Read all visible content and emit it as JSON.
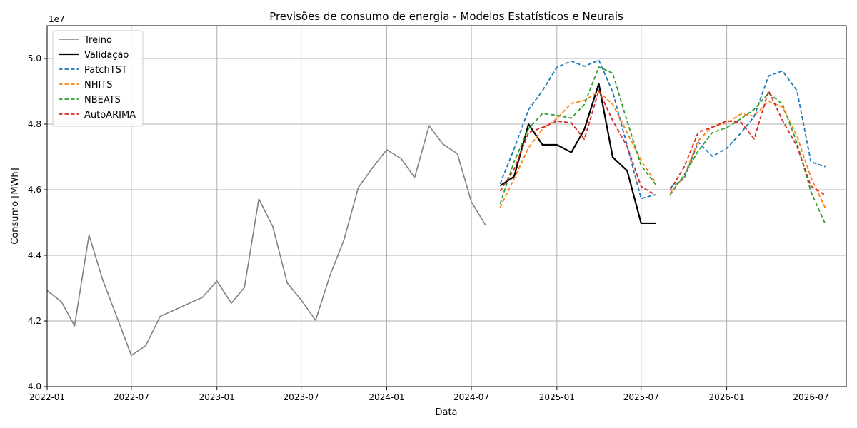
{
  "chart_data": {
    "type": "line",
    "title": "Previsões de consumo de energia - Modelos Estatísticos e Neurais",
    "xlabel": "Data",
    "ylabel": "Consumo [MWh]",
    "y_offset_label": "1e7",
    "ylim": [
      40000000,
      51000000
    ],
    "y_scale": 10000000,
    "xlim": [
      "2022-01-01",
      "2026-09-15"
    ],
    "x_ticks": [
      "2022-01",
      "2022-07",
      "2023-01",
      "2023-07",
      "2024-01",
      "2024-07",
      "2025-01",
      "2025-07",
      "2026-01",
      "2026-07"
    ],
    "y_ticks": [
      "4.0",
      "4.2",
      "4.4",
      "4.6",
      "4.8",
      "5.0"
    ],
    "grid": true,
    "legend_position": "top-left",
    "series": [
      {
        "name": "Treino",
        "color": "#808080",
        "style": "solid",
        "width": 1.6,
        "points": [
          [
            "2022-01-01",
            42930000
          ],
          [
            "2022-02-01",
            42580000
          ],
          [
            "2022-03-01",
            41850000
          ],
          [
            "2022-04-01",
            44620000
          ],
          [
            "2022-05-01",
            43230000
          ],
          [
            "2022-06-01",
            42080000
          ],
          [
            "2022-07-01",
            40950000
          ],
          [
            "2022-08-01",
            41250000
          ],
          [
            "2022-09-01",
            42140000
          ],
          [
            "2022-12-01",
            42720000
          ],
          [
            "2023-01-01",
            43220000
          ],
          [
            "2023-02-01",
            42540000
          ],
          [
            "2023-03-01",
            43020000
          ],
          [
            "2023-04-01",
            45720000
          ],
          [
            "2023-05-01",
            44880000
          ],
          [
            "2023-06-01",
            43160000
          ],
          [
            "2023-07-01",
            42640000
          ],
          [
            "2023-08-01",
            42020000
          ],
          [
            "2023-09-01",
            43390000
          ],
          [
            "2023-10-01",
            44470000
          ],
          [
            "2023-11-01",
            46070000
          ],
          [
            "2023-12-01",
            46660000
          ],
          [
            "2024-01-01",
            47220000
          ],
          [
            "2024-02-01",
            46950000
          ],
          [
            "2024-03-01",
            46370000
          ],
          [
            "2024-04-01",
            47950000
          ],
          [
            "2024-05-01",
            47390000
          ],
          [
            "2024-06-01",
            47100000
          ],
          [
            "2024-07-01",
            45630000
          ],
          [
            "2024-08-01",
            44910000
          ]
        ]
      },
      {
        "name": "Validação",
        "color": "#000000",
        "style": "solid",
        "width": 2.2,
        "points": [
          [
            "2024-09-01",
            46120000
          ],
          [
            "2024-10-01",
            46400000
          ],
          [
            "2024-11-01",
            48000000
          ],
          [
            "2024-12-01",
            47370000
          ],
          [
            "2025-01-01",
            47370000
          ],
          [
            "2025-02-01",
            47140000
          ],
          [
            "2025-03-01",
            47840000
          ],
          [
            "2025-04-01",
            49230000
          ],
          [
            "2025-05-01",
            46990000
          ],
          [
            "2025-06-01",
            46580000
          ],
          [
            "2025-07-01",
            44980000
          ],
          [
            "2025-08-01",
            44980000
          ]
        ]
      },
      {
        "name": "PatchTST",
        "color": "#1f77b4",
        "style": "dashed",
        "width": 1.8,
        "points": [
          [
            "2024-09-01",
            46180000
          ],
          [
            "2024-10-01",
            47250000
          ],
          [
            "2024-11-01",
            48440000
          ],
          [
            "2024-12-01",
            49020000
          ],
          [
            "2025-01-01",
            49730000
          ],
          [
            "2025-02-01",
            49920000
          ],
          [
            "2025-03-01",
            49760000
          ],
          [
            "2025-04-01",
            49950000
          ],
          [
            "2025-05-01",
            48980000
          ],
          [
            "2025-06-01",
            47340000
          ],
          [
            "2025-07-01",
            45730000
          ],
          [
            "2025-08-01",
            45850000
          ]
        ],
        "points_2": [
          [
            "2025-09-01",
            46060000
          ],
          [
            "2025-10-01",
            46330000
          ],
          [
            "2025-11-01",
            47450000
          ],
          [
            "2025-12-01",
            47020000
          ],
          [
            "2026-01-01",
            47260000
          ],
          [
            "2026-02-01",
            47740000
          ],
          [
            "2026-03-01",
            48230000
          ],
          [
            "2026-04-01",
            49470000
          ],
          [
            "2026-05-01",
            49620000
          ],
          [
            "2026-06-01",
            49020000
          ],
          [
            "2026-07-01",
            46850000
          ],
          [
            "2026-08-01",
            46700000
          ]
        ]
      },
      {
        "name": "NHITS",
        "color": "#ff7f0e",
        "style": "dashed",
        "width": 1.8,
        "points": [
          [
            "2024-09-01",
            45460000
          ],
          [
            "2024-10-01",
            46340000
          ],
          [
            "2024-11-01",
            47280000
          ],
          [
            "2024-12-01",
            47850000
          ],
          [
            "2025-01-01",
            48170000
          ],
          [
            "2025-02-01",
            48630000
          ],
          [
            "2025-03-01",
            48720000
          ],
          [
            "2025-04-01",
            48990000
          ],
          [
            "2025-05-01",
            48600000
          ],
          [
            "2025-06-01",
            47740000
          ],
          [
            "2025-07-01",
            46890000
          ],
          [
            "2025-08-01",
            46220000
          ]
        ],
        "points_2": [
          [
            "2025-09-01",
            45890000
          ],
          [
            "2025-10-01",
            46400000
          ],
          [
            "2025-11-01",
            47500000
          ],
          [
            "2025-12-01",
            47930000
          ],
          [
            "2026-01-01",
            48040000
          ],
          [
            "2026-02-01",
            48310000
          ],
          [
            "2026-03-01",
            48250000
          ],
          [
            "2026-04-01",
            48700000
          ],
          [
            "2026-05-01",
            48520000
          ],
          [
            "2026-06-01",
            47640000
          ],
          [
            "2026-07-01",
            46370000
          ],
          [
            "2026-08-01",
            45440000
          ]
        ]
      },
      {
        "name": "NBEATS",
        "color": "#2ca02c",
        "style": "dashed",
        "width": 1.8,
        "points": [
          [
            "2024-09-01",
            45570000
          ],
          [
            "2024-10-01",
            46860000
          ],
          [
            "2024-11-01",
            47860000
          ],
          [
            "2024-12-01",
            48320000
          ],
          [
            "2025-01-01",
            48270000
          ],
          [
            "2025-02-01",
            48180000
          ],
          [
            "2025-03-01",
            48600000
          ],
          [
            "2025-04-01",
            49740000
          ],
          [
            "2025-05-01",
            49550000
          ],
          [
            "2025-06-01",
            48090000
          ],
          [
            "2025-07-01",
            46740000
          ],
          [
            "2025-08-01",
            46160000
          ]
        ],
        "points_2": [
          [
            "2025-09-01",
            45840000
          ],
          [
            "2025-10-01",
            46440000
          ],
          [
            "2025-11-01",
            47190000
          ],
          [
            "2025-12-01",
            47740000
          ],
          [
            "2026-01-01",
            47890000
          ],
          [
            "2026-02-01",
            48170000
          ],
          [
            "2026-03-01",
            48450000
          ],
          [
            "2026-04-01",
            48940000
          ],
          [
            "2026-05-01",
            48610000
          ],
          [
            "2026-06-01",
            47430000
          ],
          [
            "2026-07-01",
            45940000
          ],
          [
            "2026-08-01",
            44950000
          ]
        ]
      },
      {
        "name": "AutoARIMA",
        "color": "#d62728",
        "style": "dashed",
        "width": 1.8,
        "points": [
          [
            "2024-09-01",
            45960000
          ],
          [
            "2024-10-01",
            46620000
          ],
          [
            "2024-11-01",
            47740000
          ],
          [
            "2024-12-01",
            47900000
          ],
          [
            "2025-01-01",
            48090000
          ],
          [
            "2025-02-01",
            48040000
          ],
          [
            "2025-03-01",
            47540000
          ],
          [
            "2025-04-01",
            49020000
          ],
          [
            "2025-05-01",
            48110000
          ],
          [
            "2025-06-01",
            47320000
          ],
          [
            "2025-07-01",
            46100000
          ],
          [
            "2025-08-01",
            45840000
          ]
        ],
        "points_2": [
          [
            "2025-09-01",
            45980000
          ],
          [
            "2025-10-01",
            46680000
          ],
          [
            "2025-11-01",
            47760000
          ],
          [
            "2025-12-01",
            47900000
          ],
          [
            "2026-01-01",
            48100000
          ],
          [
            "2026-02-01",
            48050000
          ],
          [
            "2026-03-01",
            47550000
          ],
          [
            "2026-04-01",
            49010000
          ],
          [
            "2026-05-01",
            48110000
          ],
          [
            "2026-06-01",
            47330000
          ],
          [
            "2026-07-01",
            46110000
          ],
          [
            "2026-08-01",
            45830000
          ]
        ]
      }
    ]
  }
}
